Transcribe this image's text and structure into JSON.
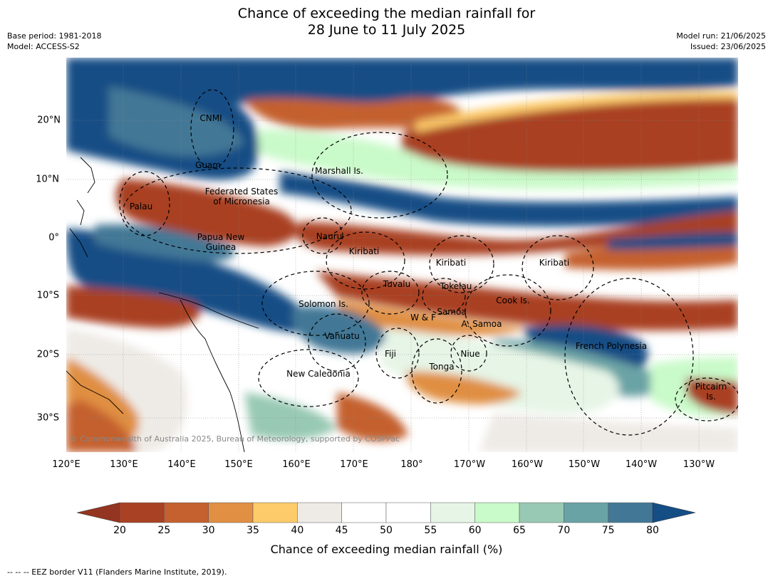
{
  "title": {
    "line1": "Chance of exceeding the median rainfall for",
    "line2": "28 June to 11 July 2025"
  },
  "meta_left": {
    "base_period": "Base period: 1981-2018",
    "model": "Model: ACCESS-S2"
  },
  "meta_right": {
    "model_run": "Model run: 21/06/2025",
    "issued": "Issued: 23/06/2025"
  },
  "axes": {
    "lon_ticks": [
      "120°E",
      "130°E",
      "140°E",
      "150°E",
      "160°E",
      "170°E",
      "180°",
      "170°W",
      "160°W",
      "150°W",
      "140°W",
      "130°W"
    ],
    "lat_ticks": [
      "20°N",
      "10°N",
      "0°",
      "10°S",
      "20°S",
      "30°S"
    ]
  },
  "regions": [
    {
      "name": "CNMI"
    },
    {
      "name": "Guam"
    },
    {
      "name": "Marshall Is."
    },
    {
      "name": "Federated States\nof Micronesia"
    },
    {
      "name": "Palau"
    },
    {
      "name": "Nauru"
    },
    {
      "name": "Papua New\nGuinea"
    },
    {
      "name": "Kiribati"
    },
    {
      "name": "Kiribati"
    },
    {
      "name": "Kiribati"
    },
    {
      "name": "Tuvalu"
    },
    {
      "name": "Tokelau"
    },
    {
      "name": "Cook Is."
    },
    {
      "name": "Solomon Is."
    },
    {
      "name": "Samoa"
    },
    {
      "name": "W & F"
    },
    {
      "name": "A. Samoa"
    },
    {
      "name": "Vanuatu"
    },
    {
      "name": "French Polynesia"
    },
    {
      "name": "Fiji"
    },
    {
      "name": "Niue"
    },
    {
      "name": "Tonga"
    },
    {
      "name": "New Caledonia"
    },
    {
      "name": "Pitcairn\nIs."
    }
  ],
  "copyright": "© Commonwealth of Australia 2025, Bureau of Meteorology, supported by COSPPac",
  "colorbar": {
    "ticks": [
      "20",
      "25",
      "30",
      "35",
      "40",
      "45",
      "50",
      "55",
      "60",
      "65",
      "70",
      "75",
      "80"
    ],
    "colors": [
      "#a94124",
      "#c4612f",
      "#e08f43",
      "#fdcb6a",
      "#eeebe6",
      "#ffffff",
      "#ffffff",
      "#e6f5e6",
      "#c9fac9",
      "#98c9b4",
      "#6aa3a5",
      "#427896"
    ],
    "under_color": "#933520",
    "over_color": "#154d85",
    "label": "Chance of exceeding median rainfall (%)"
  },
  "footnote": "-- -- -- EEZ border V11 (Flanders Marine Institute, 2019)."
}
